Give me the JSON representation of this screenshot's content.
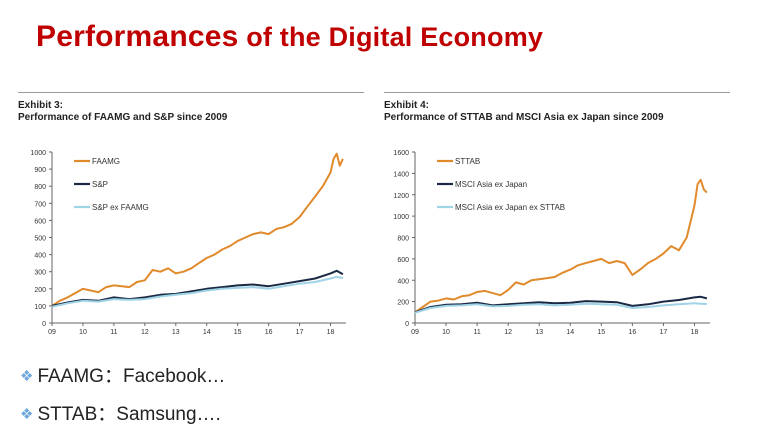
{
  "slide": {
    "title_part1": "Performances",
    "title_part2": " of the Digital Economy",
    "bullets": [
      {
        "icon": "diamond-bullet-icon",
        "text": "FAAMG：Facebook…"
      },
      {
        "icon": "diamond-bullet-icon",
        "text": "STTAB：Samsung…."
      }
    ],
    "colors": {
      "title": "#c00000",
      "orange": "#e08a2c",
      "navy": "#1a2a44",
      "lightblue": "#9fd3e6"
    }
  },
  "chart_data": [
    {
      "type": "line",
      "exhibit": "Exhibit 3:",
      "title": "Performance of FAAMG and S&P since 2009",
      "x_ticks": [
        "09",
        "10",
        "11",
        "12",
        "13",
        "14",
        "15",
        "16",
        "17",
        "18"
      ],
      "xlim": [
        2009,
        2018.5
      ],
      "ylim": [
        0,
        1000
      ],
      "y_ticks": [
        0,
        100,
        200,
        300,
        400,
        500,
        600,
        700,
        800,
        900,
        1000
      ],
      "grid": false,
      "legend_position": "top-left",
      "series": [
        {
          "name": "FAAMG",
          "color": "#e08a2c",
          "x": [
            2009,
            2009.25,
            2009.5,
            2009.75,
            2010,
            2010.25,
            2010.5,
            2010.75,
            2011,
            2011.25,
            2011.5,
            2011.75,
            2012,
            2012.25,
            2012.5,
            2012.75,
            2013,
            2013.25,
            2013.5,
            2013.75,
            2014,
            2014.25,
            2014.5,
            2014.75,
            2015,
            2015.25,
            2015.5,
            2015.75,
            2016,
            2016.25,
            2016.5,
            2016.75,
            2017,
            2017.25,
            2017.5,
            2017.75,
            2018,
            2018.1,
            2018.2,
            2018.3,
            2018.4
          ],
          "y": [
            100,
            130,
            150,
            175,
            200,
            190,
            180,
            210,
            220,
            215,
            210,
            240,
            250,
            310,
            300,
            320,
            290,
            300,
            320,
            350,
            380,
            400,
            430,
            450,
            480,
            500,
            520,
            530,
            520,
            550,
            560,
            580,
            620,
            680,
            740,
            800,
            880,
            960,
            990,
            920,
            960
          ]
        },
        {
          "name": "S&P",
          "color": "#1a2a44",
          "x": [
            2009,
            2009.5,
            2010,
            2010.5,
            2011,
            2011.5,
            2012,
            2012.5,
            2013,
            2013.5,
            2014,
            2014.5,
            2015,
            2015.5,
            2016,
            2016.5,
            2017,
            2017.5,
            2018,
            2018.2,
            2018.4
          ],
          "y": [
            100,
            120,
            135,
            130,
            150,
            140,
            150,
            165,
            170,
            185,
            200,
            210,
            220,
            225,
            215,
            230,
            245,
            260,
            290,
            305,
            285
          ]
        },
        {
          "name": "S&P ex FAAMG",
          "color": "#9fd3e6",
          "x": [
            2009,
            2009.5,
            2010,
            2010.5,
            2011,
            2011.5,
            2012,
            2012.5,
            2013,
            2013.5,
            2014,
            2014.5,
            2015,
            2015.5,
            2016,
            2016.5,
            2017,
            2017.5,
            2018,
            2018.2,
            2018.4
          ],
          "y": [
            95,
            115,
            130,
            125,
            140,
            135,
            140,
            155,
            165,
            175,
            190,
            200,
            205,
            210,
            200,
            215,
            230,
            240,
            260,
            270,
            262
          ]
        }
      ]
    },
    {
      "type": "line",
      "exhibit": "Exhibit 4:",
      "title": "Performance of STTAB and MSCI Asia ex Japan since 2009",
      "x_ticks": [
        "09",
        "10",
        "11",
        "12",
        "13",
        "14",
        "15",
        "16",
        "17",
        "18"
      ],
      "xlim": [
        2009,
        2018.5
      ],
      "ylim": [
        0,
        1600
      ],
      "y_ticks": [
        0,
        200,
        400,
        600,
        800,
        1000,
        1200,
        1400,
        1600
      ],
      "grid": false,
      "legend_position": "top-left",
      "series": [
        {
          "name": "STTAB",
          "color": "#e08a2c",
          "x": [
            2009,
            2009.25,
            2009.5,
            2009.75,
            2010,
            2010.25,
            2010.5,
            2010.75,
            2011,
            2011.25,
            2011.5,
            2011.75,
            2012,
            2012.25,
            2012.5,
            2012.75,
            2013,
            2013.25,
            2013.5,
            2013.75,
            2014,
            2014.25,
            2014.5,
            2014.75,
            2015,
            2015.25,
            2015.5,
            2015.75,
            2016,
            2016.25,
            2016.5,
            2016.75,
            2017,
            2017.25,
            2017.5,
            2017.75,
            2018,
            2018.1,
            2018.2,
            2018.3,
            2018.4
          ],
          "y": [
            100,
            150,
            200,
            210,
            230,
            220,
            250,
            260,
            290,
            300,
            280,
            260,
            310,
            380,
            360,
            400,
            410,
            420,
            430,
            470,
            500,
            540,
            560,
            580,
            600,
            560,
            580,
            560,
            450,
            500,
            560,
            600,
            650,
            720,
            680,
            800,
            1100,
            1300,
            1340,
            1250,
            1220
          ]
        },
        {
          "name": "MSCI Asia ex Japan",
          "color": "#1a2a44",
          "x": [
            2009,
            2009.5,
            2010,
            2010.5,
            2011,
            2011.5,
            2012,
            2012.5,
            2013,
            2013.5,
            2014,
            2014.5,
            2015,
            2015.5,
            2016,
            2016.5,
            2017,
            2017.5,
            2018,
            2018.2,
            2018.4
          ],
          "y": [
            100,
            150,
            170,
            175,
            190,
            165,
            175,
            185,
            195,
            185,
            190,
            205,
            200,
            195,
            160,
            175,
            200,
            215,
            240,
            245,
            230
          ]
        },
        {
          "name": "MSCI Asia ex Japan ex STTAB",
          "color": "#9fd3e6",
          "x": [
            2009,
            2009.5,
            2010,
            2010.5,
            2011,
            2011.5,
            2012,
            2012.5,
            2013,
            2013.5,
            2014,
            2014.5,
            2015,
            2015.5,
            2016,
            2016.5,
            2017,
            2017.5,
            2018,
            2018.2,
            2018.4
          ],
          "y": [
            95,
            140,
            160,
            165,
            175,
            155,
            160,
            170,
            175,
            165,
            170,
            180,
            175,
            170,
            140,
            150,
            165,
            175,
            185,
            180,
            178
          ]
        }
      ]
    }
  ]
}
